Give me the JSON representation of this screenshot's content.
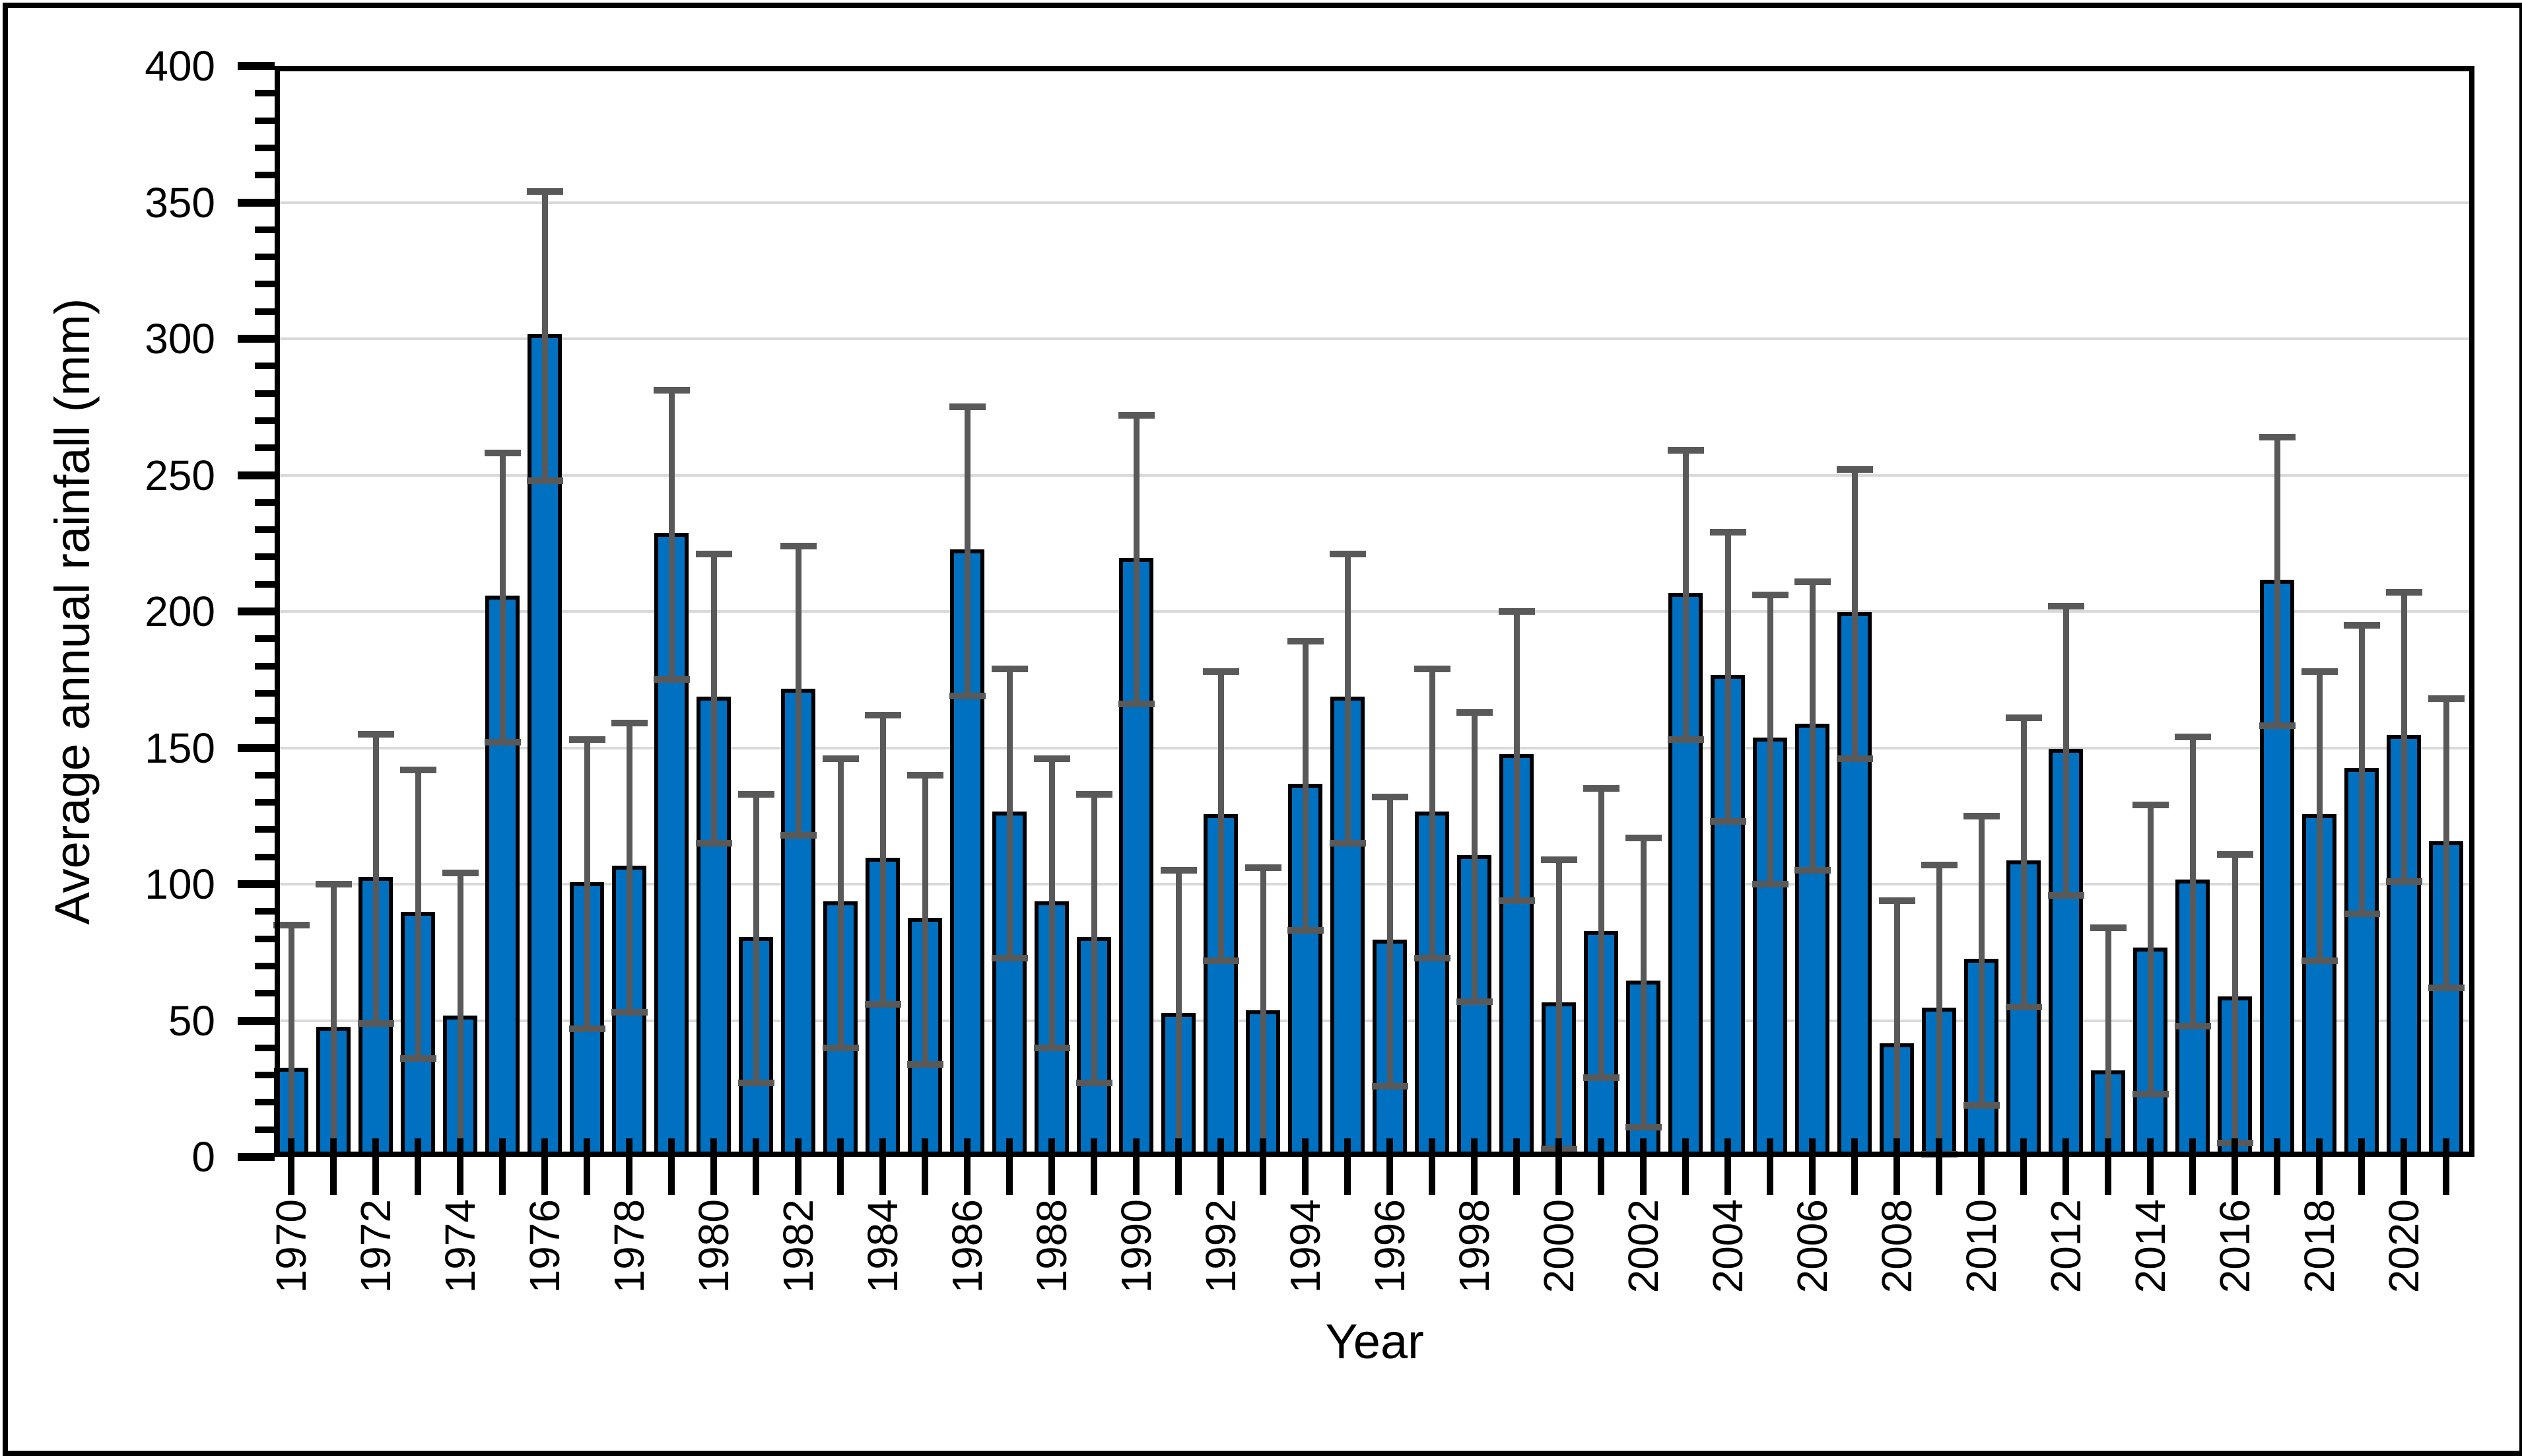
{
  "chart_data": {
    "type": "bar",
    "title": "",
    "xlabel": "Year",
    "ylabel": "Average annual rainfall (mm)",
    "ylim": [
      0,
      400
    ],
    "ytick_step": 50,
    "ytick_minor_step": 10,
    "yticks": [
      0,
      50,
      100,
      150,
      200,
      250,
      300,
      350,
      400
    ],
    "grid": "horizontal-major",
    "legend": "none",
    "x_label_interval": 2,
    "visible_x_labels": [
      "1970",
      "1972",
      "1974",
      "1976",
      "1978",
      "1980",
      "1982",
      "1984",
      "1986",
      "1988",
      "1990",
      "1992",
      "1994",
      "1996",
      "1998",
      "2000",
      "2002",
      "2004",
      "2006",
      "2008",
      "2010",
      "2012",
      "2014",
      "2016",
      "2018",
      "2020"
    ],
    "error_bar_plus_minus": 53,
    "categories": [
      1970,
      1971,
      1972,
      1973,
      1974,
      1975,
      1976,
      1977,
      1978,
      1979,
      1980,
      1981,
      1982,
      1983,
      1984,
      1985,
      1986,
      1987,
      1988,
      1989,
      1990,
      1991,
      1992,
      1993,
      1994,
      1995,
      1996,
      1997,
      1998,
      1999,
      2000,
      2001,
      2002,
      2003,
      2004,
      2005,
      2006,
      2007,
      2008,
      2009,
      2010,
      2011,
      2012,
      2013,
      2014,
      2015,
      2016,
      2017,
      2018,
      2019,
      2020,
      2021
    ],
    "values": [
      32,
      47,
      102,
      89,
      51,
      205,
      301,
      100,
      106,
      228,
      168,
      80,
      171,
      93,
      109,
      87,
      222,
      126,
      93,
      80,
      219,
      52,
      125,
      53,
      136,
      168,
      79,
      126,
      110,
      147,
      56,
      82,
      64,
      206,
      176,
      153,
      158,
      199,
      41,
      54,
      72,
      108,
      149,
      31,
      76,
      101,
      58,
      211,
      125,
      142,
      154,
      115
    ],
    "colors": {
      "bar_fill": "#0070C0",
      "bar_border": "#000000",
      "error_bar": "#595959",
      "gridline": "#D9D9D9",
      "plot_border": "#000000",
      "figure_border": "#000000",
      "background": "#FFFFFF",
      "text": "#000000"
    }
  }
}
